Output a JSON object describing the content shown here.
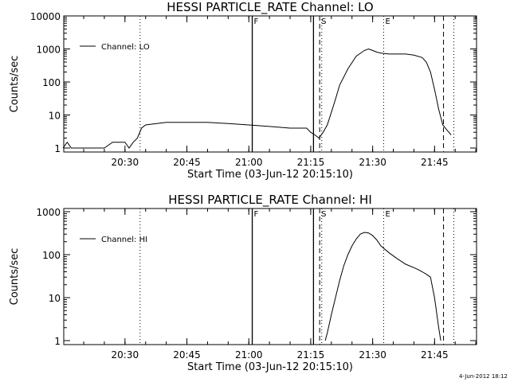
{
  "footer": {
    "timestamp": "4-Jun-2012 18:12"
  },
  "chart_data": [
    {
      "type": "line",
      "title": "HESSI PARTICLE_RATE Channel: LO",
      "xlabel": "Start Time (03-Jun-12 20:15:10)",
      "ylabel": "Counts/sec",
      "yscale": "log",
      "xlim_minutes_after_2015": [
        0,
        100
      ],
      "ylim": [
        0.9,
        11000
      ],
      "grid": false,
      "legend_position": "top-left",
      "x_tick_labels": [
        "20:30",
        "20:45",
        "21:00",
        "21:15",
        "21:30",
        "21:45"
      ],
      "y_tick_labels": [
        "1",
        "10",
        "100",
        "1000",
        "10000"
      ],
      "markers": [
        {
          "label": "F",
          "x": "21:00:50",
          "style": "solid"
        },
        {
          "label": "",
          "x": "21:15:40",
          "style": "solid"
        },
        {
          "label": "S",
          "x": "21:17:10",
          "style": "dashed"
        },
        {
          "label": "",
          "x": "21:17:40",
          "style": "dotted"
        },
        {
          "label": "E",
          "x": "21:32:40",
          "style": "dotted"
        },
        {
          "label": "",
          "x": "21:47:10",
          "style": "dashed"
        },
        {
          "label": "",
          "x": "21:49:40",
          "style": "dotted"
        },
        {
          "label": "",
          "x": "20:33:40",
          "style": "dotted"
        }
      ],
      "series": [
        {
          "name": "Channel: LO",
          "x": [
            "20:15",
            "20:16",
            "20:17",
            "20:18",
            "20:19",
            "20:21",
            "20:25",
            "20:27",
            "20:29",
            "20:30",
            "20:31",
            "20:32",
            "20:33",
            "20:34",
            "20:35",
            "20:40",
            "20:45",
            "20:50",
            "20:55",
            "21:00",
            "21:05",
            "21:10",
            "21:14",
            "21:15",
            "21:16",
            "21:17",
            "21:18",
            "21:19",
            "21:20",
            "21:21",
            "21:22",
            "21:24",
            "21:26",
            "21:28",
            "21:29",
            "21:30",
            "21:31",
            "21:32",
            "21:34",
            "21:36",
            "21:38",
            "21:40",
            "21:42",
            "21:43",
            "21:44",
            "21:45",
            "21:46",
            "21:47",
            "21:48",
            "21:49"
          ],
          "y": [
            1,
            1.5,
            1,
            1,
            1,
            1,
            1,
            1.5,
            1.5,
            1.5,
            1,
            1.5,
            2,
            4,
            5,
            6,
            6,
            6,
            5.5,
            5,
            4.5,
            4,
            4,
            3,
            2.5,
            2,
            3,
            5,
            12,
            30,
            80,
            250,
            600,
            900,
            1000,
            900,
            800,
            750,
            700,
            700,
            700,
            650,
            550,
            400,
            200,
            60,
            15,
            5,
            3.5,
            2.5
          ]
        }
      ]
    },
    {
      "type": "line",
      "title": "HESSI PARTICLE_RATE Channel: HI",
      "xlabel": "Start Time (03-Jun-12 20:15:10)",
      "ylabel": "Counts/sec",
      "yscale": "log",
      "xlim_minutes_after_2015": [
        0,
        100
      ],
      "ylim": [
        0.9,
        1100
      ],
      "grid": false,
      "legend_position": "top-left",
      "x_tick_labels": [
        "20:30",
        "20:45",
        "21:00",
        "21:15",
        "21:30",
        "21:45"
      ],
      "y_tick_labels": [
        "1",
        "10",
        "100",
        "1000"
      ],
      "markers": [
        {
          "label": "F",
          "x": "21:00:50",
          "style": "solid"
        },
        {
          "label": "",
          "x": "21:15:40",
          "style": "solid"
        },
        {
          "label": "S",
          "x": "21:17:10",
          "style": "dashed"
        },
        {
          "label": "",
          "x": "21:17:40",
          "style": "dotted"
        },
        {
          "label": "E",
          "x": "21:32:40",
          "style": "dotted"
        },
        {
          "label": "",
          "x": "21:47:10",
          "style": "dashed"
        },
        {
          "label": "",
          "x": "21:49:40",
          "style": "dotted"
        },
        {
          "label": "",
          "x": "20:33:40",
          "style": "dotted"
        }
      ],
      "series": [
        {
          "name": "Channel: HI",
          "x": [
            "21:18:30",
            "21:19",
            "21:20",
            "21:21",
            "21:22",
            "21:23",
            "21:24",
            "21:25",
            "21:26",
            "21:27",
            "21:28",
            "21:29",
            "21:30",
            "21:31",
            "21:32",
            "21:34",
            "21:36",
            "21:38",
            "21:40",
            "21:41",
            "21:42",
            "21:43",
            "21:44",
            "21:45",
            "21:46",
            "21:46:30"
          ],
          "y": [
            1,
            1.5,
            4,
            10,
            25,
            55,
            100,
            160,
            230,
            300,
            330,
            320,
            280,
            220,
            160,
            110,
            80,
            60,
            50,
            45,
            40,
            35,
            30,
            10,
            2,
            1
          ]
        }
      ]
    }
  ]
}
